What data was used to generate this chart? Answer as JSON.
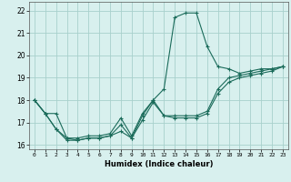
{
  "xlabel": "Humidex (Indice chaleur)",
  "bg_color": "#d8f0ee",
  "grid_color": "#a8d0cc",
  "line_color": "#1a6b5a",
  "xlim": [
    -0.5,
    23.5
  ],
  "ylim": [
    15.8,
    22.4
  ],
  "yticks": [
    16,
    17,
    18,
    19,
    20,
    21,
    22
  ],
  "xticks": [
    0,
    1,
    2,
    3,
    4,
    5,
    6,
    7,
    8,
    9,
    10,
    11,
    12,
    13,
    14,
    15,
    16,
    17,
    18,
    19,
    20,
    21,
    22,
    23
  ],
  "series": [
    {
      "x": [
        0,
        1,
        2,
        3,
        4,
        5,
        6,
        7,
        8,
        9,
        10,
        11,
        12,
        13,
        14,
        15,
        16,
        17,
        18,
        19,
        20,
        21,
        22,
        23
      ],
      "y": [
        18.0,
        17.4,
        17.4,
        16.3,
        16.2,
        16.3,
        16.3,
        16.4,
        16.9,
        16.3,
        17.3,
        18.0,
        18.5,
        21.7,
        21.9,
        21.9,
        20.4,
        19.5,
        19.4,
        19.2,
        19.3,
        19.4,
        19.4,
        19.5
      ]
    },
    {
      "x": [
        0,
        1,
        2,
        3,
        4,
        5,
        6,
        7,
        8,
        9,
        10,
        11,
        12,
        13,
        14,
        15,
        16,
        17,
        18,
        19,
        20,
        21,
        22,
        23
      ],
      "y": [
        18.0,
        17.4,
        16.7,
        16.3,
        16.3,
        16.4,
        16.4,
        16.5,
        17.2,
        16.4,
        17.4,
        18.0,
        17.3,
        17.3,
        17.3,
        17.3,
        17.5,
        18.5,
        19.0,
        19.1,
        19.2,
        19.3,
        19.4,
        19.5
      ]
    },
    {
      "x": [
        0,
        1,
        2,
        3,
        4,
        5,
        6,
        7,
        8,
        9,
        10,
        11,
        12,
        13,
        14,
        15,
        16,
        17,
        18,
        19,
        20,
        21,
        22,
        23
      ],
      "y": [
        18.0,
        17.4,
        16.7,
        16.2,
        16.2,
        16.3,
        16.3,
        16.4,
        16.6,
        16.3,
        17.1,
        17.9,
        17.3,
        17.2,
        17.2,
        17.2,
        17.4,
        18.3,
        18.8,
        19.0,
        19.1,
        19.2,
        19.3,
        19.5
      ]
    }
  ]
}
